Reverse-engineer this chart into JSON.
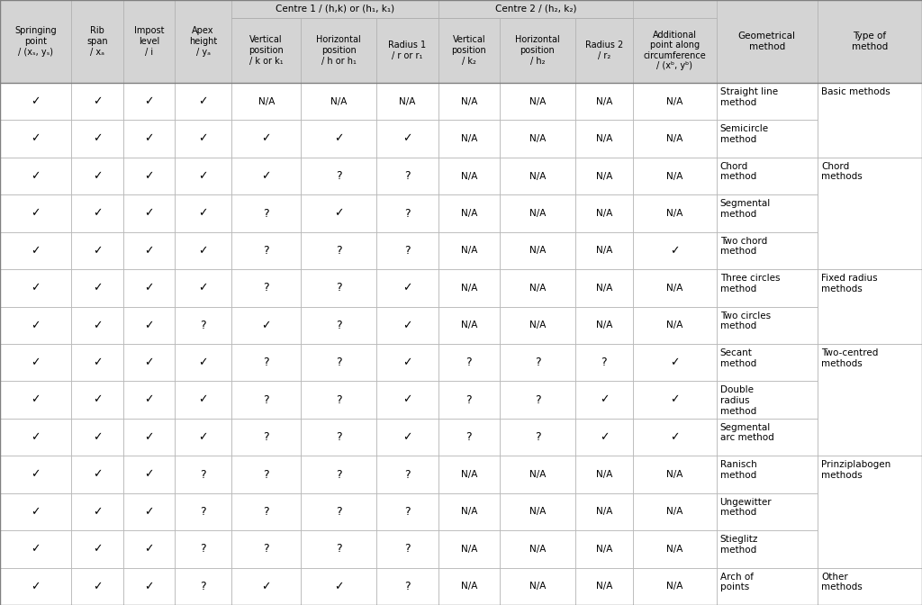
{
  "headers_row1": [
    {
      "text": "",
      "cols": [
        0
      ],
      "span": 1
    },
    {
      "text": "",
      "cols": [
        1
      ],
      "span": 1
    },
    {
      "text": "",
      "cols": [
        2
      ],
      "span": 1
    },
    {
      "text": "",
      "cols": [
        3
      ],
      "span": 1
    },
    {
      "text": "Centre 1 / (h,k) or (h₁, k₁)",
      "cols": [
        4,
        5,
        6
      ],
      "span": 3
    },
    {
      "text": "",
      "cols": [
        7
      ],
      "span": 1
    },
    {
      "text": "Centre 2 / (h₂, k₂)",
      "cols": [
        8,
        9,
        10
      ],
      "span": 3
    },
    {
      "text": "",
      "cols": [
        11
      ],
      "span": 1
    },
    {
      "text": "",
      "cols": [
        12
      ],
      "span": 1
    },
    {
      "text": "",
      "cols": [
        13
      ],
      "span": 1
    }
  ],
  "headers_row2": [
    "Springing\npoint\n/ (xₛ, yₛ)",
    "Rib\nspan\n/ xₐ",
    "Impost\nlevel\n/ i",
    "Apex\nheight\n/ yₐ",
    "Vertical\nposition\n/ k or k₁",
    "Horizontal\nposition\n/ h or h₁",
    "Radius 1\n/ r or r₁",
    "Vertical\nposition\n/ k₂",
    "Horizontal\nposition\n/ h₂",
    "Radius 2\n/ r₂",
    "Additional\npoint along\ncircumference\n/ (xᵇ, yᵇ)",
    "Geometrical\nmethod",
    "Type of\nmethod"
  ],
  "rows": [
    {
      "cells": [
        "✓",
        "✓",
        "✓",
        "✓",
        "N/A",
        "N/A",
        "N/A",
        "N/A",
        "N/A",
        "N/A",
        "N/A"
      ],
      "method": "Straight line\nmethod",
      "type": "Basic methods",
      "type_start": true
    },
    {
      "cells": [
        "✓",
        "✓",
        "✓",
        "✓",
        "✓",
        "✓",
        "✓",
        "N/A",
        "N/A",
        "N/A",
        "N/A"
      ],
      "method": "Semicircle\nmethod",
      "type": "",
      "type_start": false
    },
    {
      "cells": [
        "✓",
        "✓",
        "✓",
        "✓",
        "✓",
        "?",
        "?",
        "N/A",
        "N/A",
        "N/A",
        "N/A"
      ],
      "method": "Chord\nmethod",
      "type": "Chord\nmethods",
      "type_start": true
    },
    {
      "cells": [
        "✓",
        "✓",
        "✓",
        "✓",
        "?",
        "✓",
        "?",
        "N/A",
        "N/A",
        "N/A",
        "N/A"
      ],
      "method": "Segmental\nmethod",
      "type": "",
      "type_start": false
    },
    {
      "cells": [
        "✓",
        "✓",
        "✓",
        "✓",
        "?",
        "?",
        "?",
        "N/A",
        "N/A",
        "N/A",
        "✓"
      ],
      "method": "Two chord\nmethod",
      "type": "",
      "type_start": false
    },
    {
      "cells": [
        "✓",
        "✓",
        "✓",
        "✓",
        "?",
        "?",
        "✓",
        "N/A",
        "N/A",
        "N/A",
        "N/A"
      ],
      "method": "Three circles\nmethod",
      "type": "Fixed radius\nmethods",
      "type_start": true
    },
    {
      "cells": [
        "✓",
        "✓",
        "✓",
        "?",
        "✓",
        "?",
        "✓",
        "N/A",
        "N/A",
        "N/A",
        "N/A"
      ],
      "method": "Two circles\nmethod",
      "type": "",
      "type_start": false
    },
    {
      "cells": [
        "✓",
        "✓",
        "✓",
        "✓",
        "?",
        "?",
        "✓",
        "?",
        "?",
        "?",
        "✓"
      ],
      "method": "Secant\nmethod",
      "type": "Two-centred\nmethods",
      "type_start": true
    },
    {
      "cells": [
        "✓",
        "✓",
        "✓",
        "✓",
        "?",
        "?",
        "✓",
        "?",
        "?",
        "✓",
        "✓"
      ],
      "method": "Double\nradius\nmethod",
      "type": "",
      "type_start": false
    },
    {
      "cells": [
        "✓",
        "✓",
        "✓",
        "✓",
        "?",
        "?",
        "✓",
        "?",
        "?",
        "✓",
        "✓"
      ],
      "method": "Segmental\narc method",
      "type": "",
      "type_start": false
    },
    {
      "cells": [
        "✓",
        "✓",
        "✓",
        "?",
        "?",
        "?",
        "?",
        "N/A",
        "N/A",
        "N/A",
        "N/A"
      ],
      "method": "Ranisch\nmethod",
      "type": "Prinziplabogen\nmethods",
      "type_start": true
    },
    {
      "cells": [
        "✓",
        "✓",
        "✓",
        "?",
        "?",
        "?",
        "?",
        "N/A",
        "N/A",
        "N/A",
        "N/A"
      ],
      "method": "Ungewitter\nmethod",
      "type": "",
      "type_start": false
    },
    {
      "cells": [
        "✓",
        "✓",
        "✓",
        "?",
        "?",
        "?",
        "?",
        "N/A",
        "N/A",
        "N/A",
        "N/A"
      ],
      "method": "Stieglitz\nmethod",
      "type": "",
      "type_start": false
    },
    {
      "cells": [
        "✓",
        "✓",
        "✓",
        "?",
        "✓",
        "✓",
        "?",
        "N/A",
        "N/A",
        "N/A",
        "N/A"
      ],
      "method": "Arch of\npoints",
      "type": "Other\nmethods",
      "type_start": true
    }
  ],
  "type_groups": [
    {
      "label": "Basic methods",
      "rows": [
        0,
        1
      ]
    },
    {
      "label": "Chord\nmethods",
      "rows": [
        2,
        3,
        4
      ]
    },
    {
      "label": "Fixed radius\nmethods",
      "rows": [
        5,
        6
      ]
    },
    {
      "label": "Two-centred\nmethods",
      "rows": [
        7,
        8,
        9
      ]
    },
    {
      "label": "Prinziplabogen\nmethods",
      "rows": [
        10,
        11,
        12
      ]
    },
    {
      "label": "Other\nmethods",
      "rows": [
        13
      ]
    }
  ],
  "bg_header": "#d4d4d4",
  "bg_white": "#ffffff",
  "line_color": "#b0b0b0",
  "text_color": "#000000"
}
